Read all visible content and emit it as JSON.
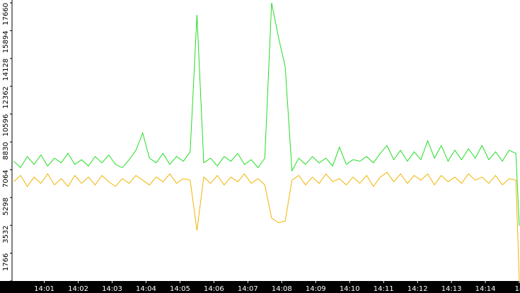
{
  "chart_data": {
    "type": "line",
    "x": [
      0.1,
      0.3,
      0.5,
      0.7,
      0.9,
      1.1,
      1.3,
      1.5,
      1.7,
      1.9,
      2.1,
      2.3,
      2.5,
      2.7,
      2.9,
      3.1,
      3.3,
      3.5,
      3.7,
      3.9,
      4.1,
      4.3,
      4.5,
      4.7,
      4.9,
      5.1,
      5.3,
      5.5,
      5.7,
      5.9,
      6.1,
      6.3,
      6.5,
      6.7,
      6.9,
      7.1,
      7.3,
      7.5,
      7.7,
      7.9,
      8.1,
      8.3,
      8.5,
      8.7,
      8.9,
      9.1,
      9.3,
      9.5,
      9.7,
      9.9,
      10.1,
      10.3,
      10.5,
      10.7,
      10.9,
      11.1,
      11.3,
      11.5,
      11.7,
      11.9,
      12.1,
      12.3,
      12.5,
      12.7,
      12.9,
      13.1,
      13.3,
      13.5,
      13.7,
      13.9,
      14.1,
      14.3,
      14.5,
      14.7,
      14.9,
      15
    ],
    "series": [
      {
        "color": "#f0b400",
        "values": [
          6300,
          6700,
          6000,
          6600,
          6200,
          6800,
          6100,
          6500,
          6000,
          6700,
          6200,
          6600,
          6100,
          6700,
          6300,
          6000,
          6500,
          6200,
          6700,
          6400,
          6100,
          6600,
          6300,
          6800,
          6200,
          6500,
          6400,
          3200,
          6600,
          6200,
          6700,
          6100,
          6600,
          6300,
          6800,
          6200,
          6500,
          6100,
          4000,
          3700,
          3800,
          6400,
          6700,
          6100,
          6600,
          6200,
          6800,
          6300,
          6500,
          6100,
          6600,
          6200,
          6700,
          6000,
          6600,
          6900,
          6300,
          6800,
          6200,
          6700,
          6400,
          6800,
          6100,
          6700,
          6300,
          6600,
          6200,
          6800,
          6400,
          6600,
          6200,
          6700,
          6100,
          6500,
          6400,
          0
        ]
      },
      {
        "color": "#22dd22",
        "values": [
          7600,
          7200,
          7900,
          7400,
          8000,
          7300,
          7800,
          7500,
          8100,
          7400,
          7700,
          7300,
          7900,
          7500,
          8000,
          7400,
          7200,
          7700,
          8300,
          9400,
          7800,
          7500,
          8100,
          7400,
          7900,
          7600,
          8200,
          16900,
          7500,
          7800,
          7300,
          7900,
          7600,
          8100,
          7400,
          7700,
          7200,
          7800,
          17660,
          15500,
          13600,
          7000,
          7800,
          7400,
          7900,
          7500,
          7800,
          7300,
          8500,
          7400,
          7700,
          7600,
          7900,
          7500,
          8100,
          8600,
          7700,
          8300,
          7600,
          8200,
          7700,
          8900,
          7800,
          8600,
          7600,
          8300,
          7700,
          8400,
          7800,
          8600,
          7700,
          8200,
          7600,
          8300,
          8100,
          3500
        ]
      }
    ],
    "xlim": [
      0.05,
      15.02
    ],
    "xticks": [
      {
        "value": 1,
        "label": "14:01"
      },
      {
        "value": 2,
        "label": "14:02"
      },
      {
        "value": 3,
        "label": "14:03"
      },
      {
        "value": 4,
        "label": "14:04"
      },
      {
        "value": 5,
        "label": "14:05"
      },
      {
        "value": 6,
        "label": "14:06"
      },
      {
        "value": 7,
        "label": "14:07"
      },
      {
        "value": 8,
        "label": "14:08"
      },
      {
        "value": 9,
        "label": "14:09"
      },
      {
        "value": 10,
        "label": "14:10"
      },
      {
        "value": 11,
        "label": "14:11"
      },
      {
        "value": 12,
        "label": "14:12"
      },
      {
        "value": 13,
        "label": "14:13"
      },
      {
        "value": 14,
        "label": "14:14"
      },
      {
        "value": 15,
        "label": "14"
      }
    ],
    "ylim": [
      0,
      17660
    ],
    "yticks": [
      0,
      1766,
      3532,
      5298,
      7064,
      8830,
      10596,
      12362,
      14128,
      15894,
      17660
    ]
  }
}
